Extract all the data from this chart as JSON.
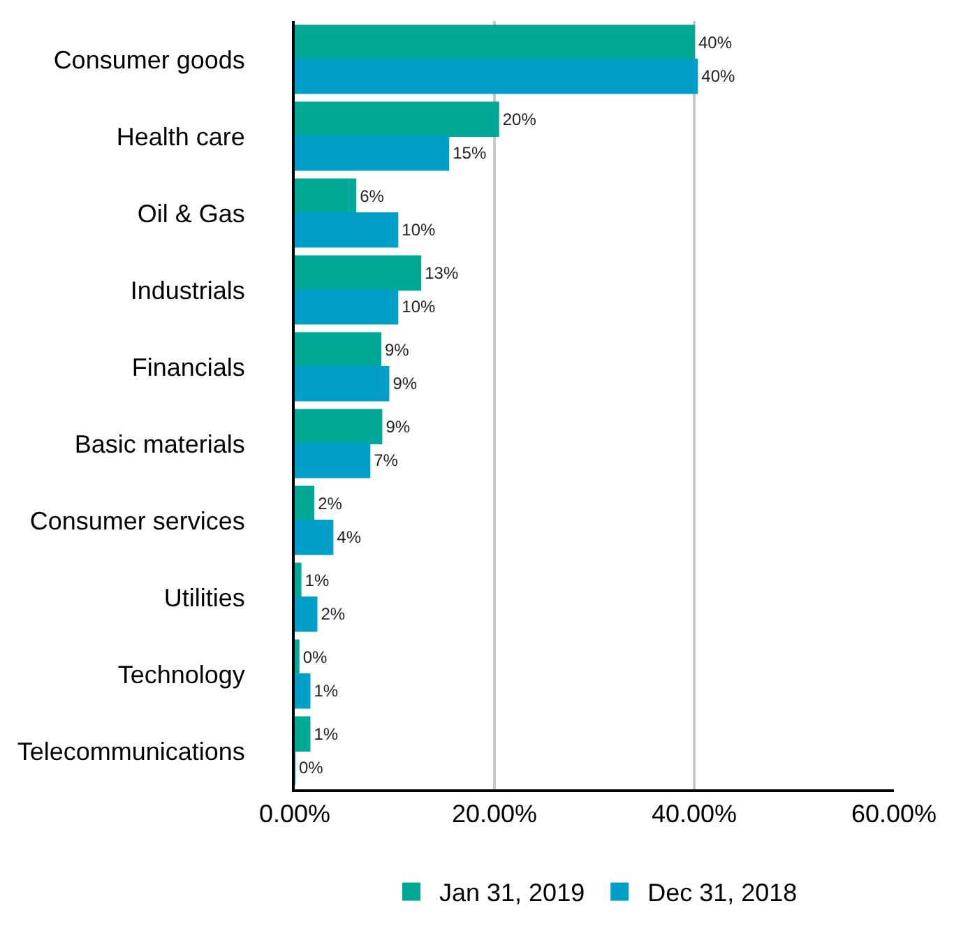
{
  "chart_data": {
    "type": "bar",
    "orientation": "horizontal",
    "categories": [
      "Consumer goods",
      "Health care",
      "Oil & Gas",
      "Industrials",
      "Financials",
      "Basic materials",
      "Consumer services",
      "Utilities",
      "Technology",
      "Telecommunications"
    ],
    "series": [
      {
        "name": "Jan 31, 2019",
        "color": "#00a896",
        "values": [
          40.0,
          20.4,
          6.1,
          12.6,
          8.6,
          8.7,
          1.9,
          0.6,
          0.4,
          1.5
        ],
        "value_labels": [
          "40%",
          "20%",
          "6%",
          "13%",
          "9%",
          "9%",
          "2%",
          "1%",
          "0%",
          "1%"
        ]
      },
      {
        "name": "Dec 31, 2018",
        "color": "#009fc8",
        "values": [
          40.3,
          15.4,
          10.3,
          10.3,
          9.4,
          7.5,
          3.8,
          2.2,
          1.5,
          0
        ],
        "value_labels": [
          "40%",
          "15%",
          "10%",
          "10%",
          "9%",
          "7%",
          "4%",
          "2%",
          "1%",
          "0%"
        ]
      }
    ],
    "xlim": [
      0,
      60
    ],
    "xticks": [
      {
        "value": 0,
        "label": "0.00%"
      },
      {
        "value": 20,
        "label": "20.00%"
      },
      {
        "value": 40,
        "label": "40.00%"
      },
      {
        "value": 60,
        "label": "60.00%"
      }
    ],
    "grid": "x",
    "legend": "bottom"
  }
}
